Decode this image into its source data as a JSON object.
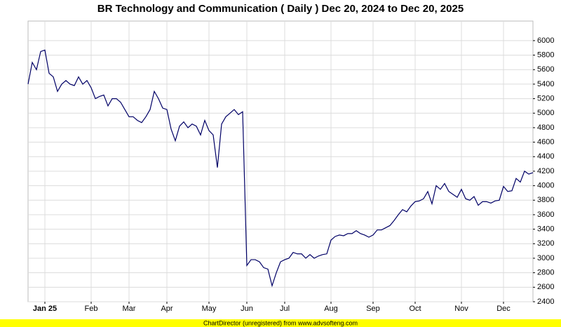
{
  "chart_data": {
    "type": "line",
    "title": "BR Technology and Communication ( Daily ) Dec 20, 2024 to Dec 20, 2025",
    "footer": "ChartDirector (unregistered) from www.advsofteng.com",
    "color": "#000066",
    "grid": true,
    "categories": [
      null,
      null,
      null,
      null,
      "Jan 25",
      null,
      null,
      null,
      null,
      null,
      null,
      null,
      null,
      null,
      null,
      "Feb",
      null,
      null,
      null,
      null,
      null,
      null,
      null,
      null,
      "Mar",
      null,
      null,
      null,
      null,
      null,
      null,
      null,
      null,
      "Apr",
      null,
      null,
      null,
      null,
      null,
      null,
      null,
      null,
      null,
      "May",
      null,
      null,
      null,
      null,
      null,
      null,
      null,
      null,
      "Jun",
      null,
      null,
      null,
      null,
      null,
      null,
      null,
      null,
      "Jul",
      null,
      null,
      null,
      null,
      null,
      null,
      null,
      null,
      null,
      null,
      "Aug",
      null,
      null,
      null,
      null,
      null,
      null,
      null,
      null,
      null,
      "Sep",
      null,
      null,
      null,
      null,
      null,
      null,
      null,
      null,
      null,
      "Oct",
      null,
      null,
      null,
      null,
      null,
      null,
      null,
      null,
      null,
      null,
      "Nov",
      null,
      null,
      null,
      null,
      null,
      null,
      null,
      null,
      null,
      "Dec",
      null,
      null,
      null,
      null,
      null,
      null,
      null
    ],
    "values": [
      5400,
      5700,
      5600,
      5850,
      5870,
      5550,
      5500,
      5300,
      5400,
      5450,
      5400,
      5380,
      5500,
      5400,
      5450,
      5350,
      5200,
      5230,
      5250,
      5100,
      5200,
      5200,
      5150,
      5050,
      4950,
      4950,
      4900,
      4870,
      4950,
      5050,
      5300,
      5200,
      5070,
      5050,
      4780,
      4620,
      4820,
      4880,
      4800,
      4850,
      4820,
      4700,
      4900,
      4760,
      4700,
      4250,
      4850,
      4950,
      5000,
      5050,
      4980,
      5020,
      2900,
      2980,
      2980,
      2950,
      2870,
      2850,
      2620,
      2800,
      2950,
      2980,
      3000,
      3080,
      3060,
      3060,
      3000,
      3050,
      3000,
      3030,
      3050,
      3060,
      3250,
      3300,
      3320,
      3310,
      3340,
      3340,
      3380,
      3340,
      3320,
      3290,
      3320,
      3390,
      3390,
      3420,
      3450,
      3520,
      3600,
      3670,
      3640,
      3720,
      3780,
      3790,
      3820,
      3920,
      3750,
      4000,
      3950,
      4030,
      3920,
      3880,
      3840,
      3950,
      3820,
      3800,
      3850,
      3730,
      3780,
      3780,
      3760,
      3790,
      3800,
      3990,
      3920,
      3930,
      4100,
      4050,
      4200,
      4160,
      4180
    ],
    "ylim": [
      2400,
      6270
    ],
    "yticks": [
      2400,
      2600,
      2800,
      3000,
      3200,
      3400,
      3600,
      3800,
      4000,
      4200,
      4400,
      4600,
      4800,
      5000,
      5200,
      5400,
      5600,
      5800,
      6000
    ]
  }
}
